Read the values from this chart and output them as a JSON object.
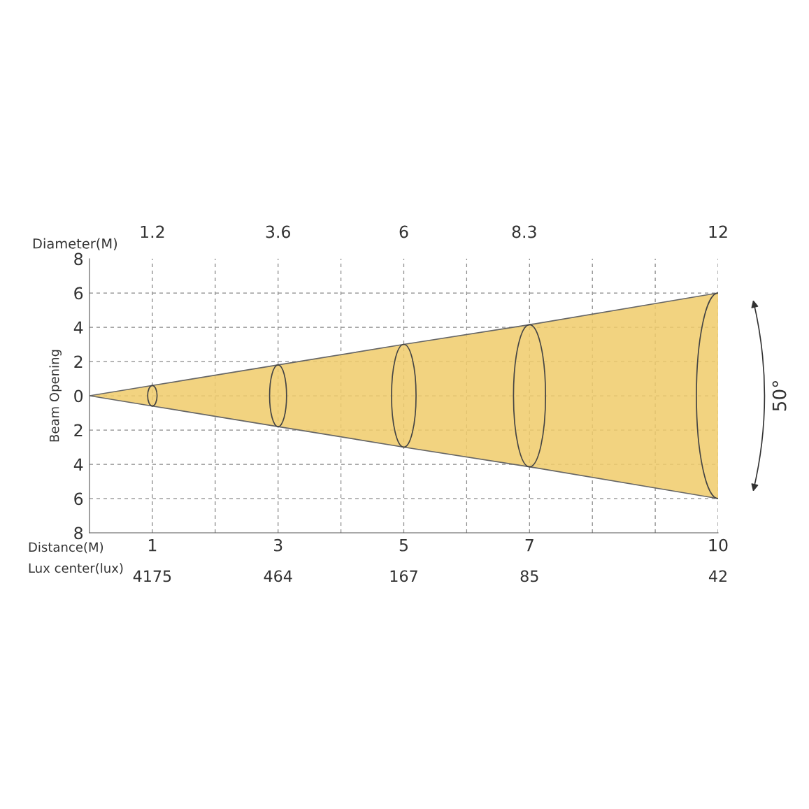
{
  "chart_data": {
    "type": "area",
    "x": [
      0,
      1,
      3,
      5,
      7,
      10
    ],
    "series": [
      {
        "color": "#f0cb6a",
        "values": [
          0,
          0.6,
          1.8,
          3,
          4.15,
          6
        ]
      },
      {
        "color": "#f0cb6a",
        "values": [
          0,
          -0.6,
          -1.8,
          -3,
          -4.15,
          -6
        ]
      }
    ],
    "ylabel": "Beam Opening",
    "xlabel": "Distance(M)",
    "x2label": "Diameter(M)",
    "xlim": [
      0,
      10
    ],
    "ylim": [
      -8,
      8
    ],
    "xticks": [
      1,
      3,
      5,
      7,
      10
    ],
    "x2lim": [
      0,
      12
    ],
    "x2ticks": [
      1.2,
      3.6,
      6,
      8.3,
      12
    ],
    "yticks": [
      {
        "value": -8,
        "label": "8"
      },
      {
        "value": -6,
        "label": "6"
      },
      {
        "value": -4,
        "label": "4"
      },
      {
        "value": -2,
        "label": "2"
      },
      0,
      2,
      4,
      6,
      8
    ],
    "grid": true,
    "line_style": "solid",
    "annotations": [
      "50°",
      "Lux center(lux)",
      "4175",
      "464",
      "167",
      "85",
      "42"
    ]
  }
}
